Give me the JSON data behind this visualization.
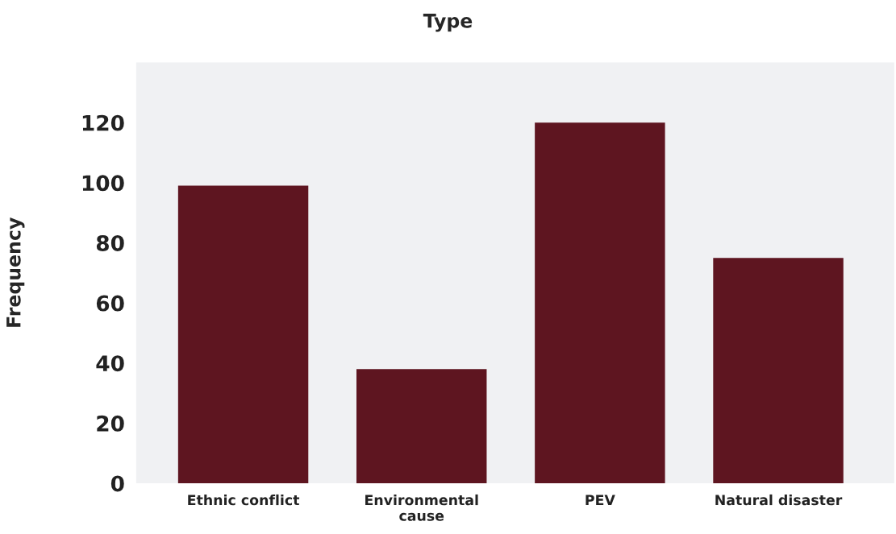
{
  "chart_data": {
    "type": "bar",
    "title": "Type",
    "ylabel": "Frequency",
    "categories": [
      "Ethnic conflict",
      "Environmental\ncause",
      "PEV",
      "Natural disaster"
    ],
    "values": [
      99,
      38,
      120,
      75
    ],
    "color": "#5e1520",
    "ylim": [
      0,
      140
    ],
    "yticks": [
      0,
      20,
      40,
      60,
      80,
      100,
      120
    ],
    "grid": false,
    "legend": false
  }
}
